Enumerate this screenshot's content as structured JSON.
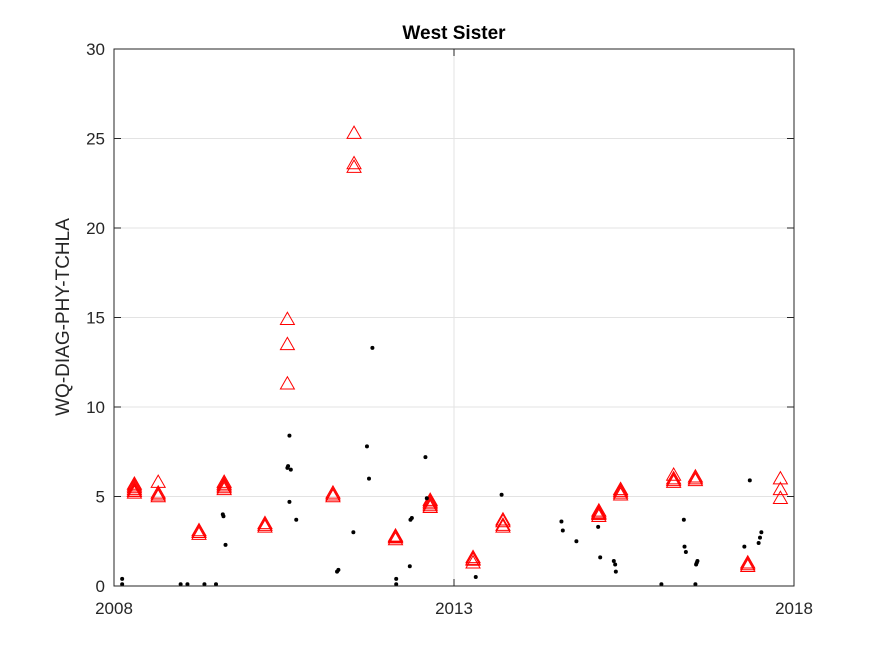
{
  "chart_data": {
    "type": "scatter",
    "title": "West Sister",
    "xlabel": "",
    "ylabel": "WQ-DIAG-PHY-TCHLA",
    "xlim": [
      2008,
      2018
    ],
    "ylim": [
      0,
      30
    ],
    "xticks": [
      2008,
      2013,
      2018
    ],
    "xtick_labels": [
      "2008",
      "2013",
      "2018"
    ],
    "yticks": [
      0,
      5,
      10,
      15,
      20,
      25,
      30
    ],
    "ytick_labels": [
      "0",
      "5",
      "10",
      "15",
      "20",
      "25",
      "30"
    ],
    "grid": true,
    "legend": "none",
    "series": [
      {
        "marker": "triangle",
        "color": "#ff0000",
        "x": [
          2008.3,
          2008.3,
          2008.3,
          2008.3,
          2008.3,
          2008.3,
          2008.3,
          2008.65,
          2008.65,
          2008.65,
          2008.65,
          2009.25,
          2009.25,
          2009.25,
          2009.62,
          2009.62,
          2009.62,
          2009.62,
          2009.62,
          2010.22,
          2010.22,
          2010.22,
          2010.55,
          2010.55,
          2010.55,
          2011.22,
          2011.22,
          2011.22,
          2011.53,
          2011.53,
          2011.53,
          2012.14,
          2012.14,
          2012.14,
          2012.14,
          2012.65,
          2012.65,
          2012.65,
          2012.65,
          2012.65,
          2013.28,
          2013.28,
          2013.28,
          2013.28,
          2013.72,
          2013.72,
          2013.72,
          2013.72,
          2015.13,
          2015.13,
          2015.13,
          2015.13,
          2015.13,
          2015.45,
          2015.45,
          2015.45,
          2015.45,
          2016.23,
          2016.23,
          2016.23,
          2016.23,
          2016.55,
          2016.55,
          2016.55,
          2017.32,
          2017.32,
          2017.32,
          2017.8,
          2017.8,
          2017.8
        ],
        "y": [
          5.2,
          5.3,
          5.4,
          5.5,
          5.6,
          5.7,
          5.3,
          5.0,
          5.1,
          5.2,
          5.8,
          2.9,
          3.0,
          3.1,
          5.4,
          5.6,
          5.7,
          5.8,
          5.5,
          3.3,
          3.4,
          3.5,
          11.3,
          13.5,
          14.9,
          5.0,
          5.1,
          5.2,
          23.4,
          23.6,
          25.3,
          2.6,
          2.7,
          2.8,
          2.75,
          4.4,
          4.6,
          4.7,
          4.8,
          4.5,
          1.3,
          1.45,
          1.6,
          1.5,
          3.3,
          3.4,
          3.6,
          3.7,
          3.9,
          4.0,
          4.1,
          4.2,
          4.05,
          5.1,
          5.2,
          5.4,
          5.3,
          5.8,
          5.9,
          6.2,
          6.0,
          5.9,
          6.0,
          6.1,
          1.1,
          1.2,
          1.3,
          4.9,
          5.4,
          6.0
        ]
      },
      {
        "marker": "dot",
        "color": "#000000",
        "x": [
          2008.12,
          2008.12,
          2008.98,
          2009.08,
          2009.33,
          2009.5,
          2009.6,
          2009.61,
          2009.64,
          2010.55,
          2010.56,
          2010.58,
          2010.58,
          2010.6,
          2010.68,
          2011.28,
          2011.3,
          2011.52,
          2011.72,
          2011.75,
          2011.8,
          2012.15,
          2012.15,
          2012.35,
          2012.36,
          2012.38,
          2012.58,
          2012.6,
          2013.32,
          2013.7,
          2014.58,
          2014.6,
          2014.8,
          2015.12,
          2015.15,
          2015.35,
          2015.37,
          2015.38,
          2016.05,
          2016.38,
          2016.39,
          2016.41,
          2016.55,
          2016.56,
          2016.57,
          2016.58,
          2017.27,
          2017.35,
          2017.48,
          2017.5,
          2017.52
        ],
        "y": [
          0.1,
          0.4,
          0.1,
          0.1,
          0.1,
          0.1,
          4.0,
          3.9,
          2.3,
          6.6,
          6.7,
          8.4,
          4.7,
          6.5,
          3.7,
          0.8,
          0.9,
          3.0,
          7.8,
          6.0,
          13.3,
          0.4,
          0.1,
          1.1,
          3.7,
          3.8,
          7.2,
          4.9,
          0.5,
          5.1,
          3.6,
          3.1,
          2.5,
          3.3,
          1.6,
          1.4,
          1.2,
          0.8,
          0.1,
          3.7,
          2.2,
          1.9,
          0.1,
          1.2,
          1.3,
          1.4,
          2.2,
          5.9,
          2.4,
          2.7,
          3.0
        ]
      }
    ]
  }
}
